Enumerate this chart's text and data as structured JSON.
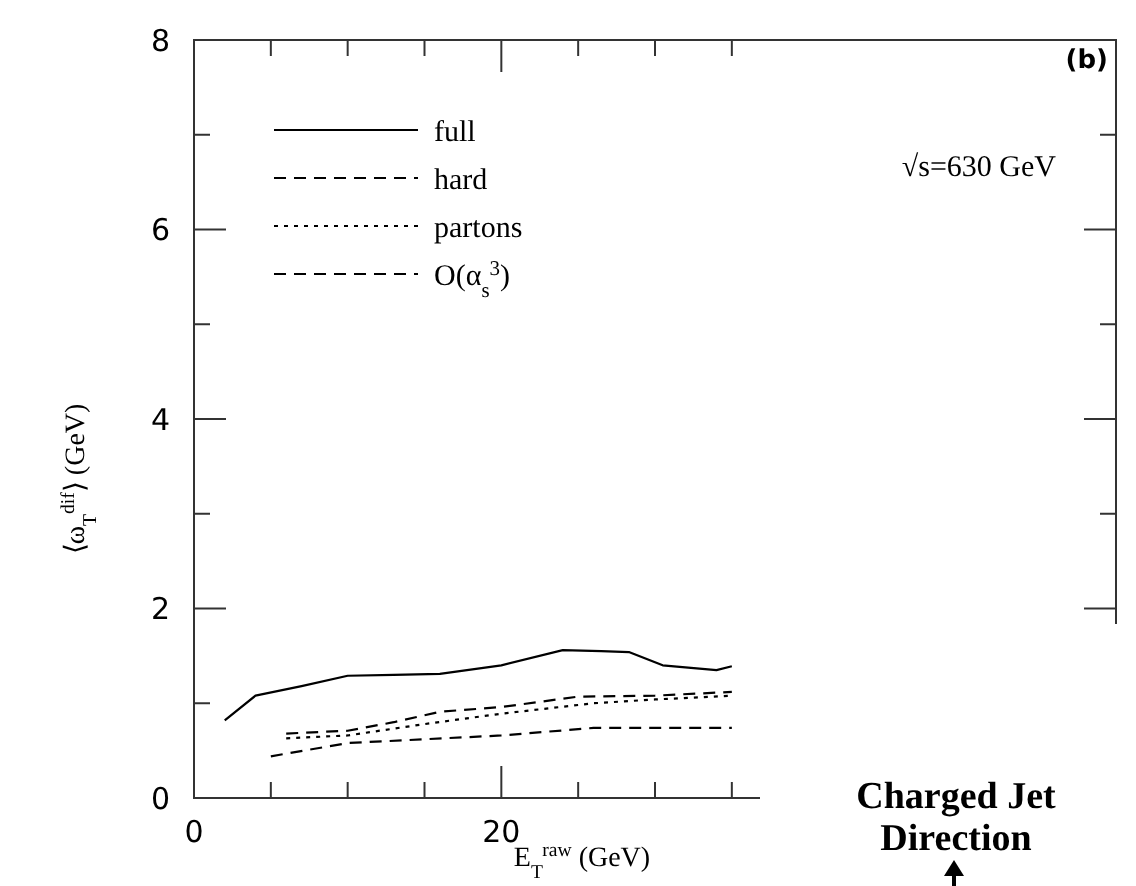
{
  "chart_data": {
    "type": "line",
    "xlabel": "E$_{T}$$^{raw}$ (GeV)",
    "ylabel": "⟨ω$_{T}$$^{dif}$⟩ (GeV)",
    "xlim": [
      0,
      60
    ],
    "xticks": [
      0,
      {
        "value": 5,
        "label": null
      },
      {
        "value": 10,
        "label": null
      },
      {
        "value": 15,
        "label": null
      },
      20,
      {
        "value": 25,
        "label": null
      },
      {
        "value": 30,
        "label": null
      },
      {
        "value": 35,
        "label": null
      }
    ],
    "ylim": [
      0,
      8
    ],
    "yticks": [
      0,
      {
        "value": 1,
        "label": null
      },
      2,
      {
        "value": 3,
        "label": null
      },
      4,
      {
        "value": 5,
        "label": null
      },
      6,
      {
        "value": 7,
        "label": null
      },
      8
    ],
    "grid": false,
    "legend": "top left",
    "annotations": [
      "(b)",
      "√s=630 GeV",
      "Charged Jet Direction"
    ],
    "series": [
      {
        "name": "full",
        "color": "#000000",
        "line_style": "solid",
        "x": [
          2,
          4,
          7,
          10,
          13,
          16,
          20,
          24,
          26.5,
          28.3,
          30.5,
          34,
          35
        ],
        "values": [
          0.82,
          1.08,
          1.18,
          1.29,
          1.3,
          1.31,
          1.4,
          1.56,
          1.55,
          1.54,
          1.4,
          1.35,
          1.39
        ]
      },
      {
        "name": "hard",
        "color": "#000000",
        "line_style": "dashed",
        "x": [
          6,
          10,
          13,
          16,
          20,
          25,
          30,
          35
        ],
        "values": [
          0.68,
          0.71,
          0.8,
          0.91,
          0.96,
          1.07,
          1.08,
          1.12
        ]
      },
      {
        "name": "partons",
        "color": "#000000",
        "line_style": "dotted",
        "x": [
          6,
          10,
          15,
          20,
          26,
          30,
          35
        ],
        "values": [
          0.63,
          0.66,
          0.78,
          0.89,
          1.0,
          1.04,
          1.08
        ]
      },
      {
        "name": "O(α$_{s}$$^{3}$)",
        "color": "#000000",
        "line_style": "dashed",
        "x": [
          5,
          10,
          15,
          20,
          26,
          30,
          35
        ],
        "values": [
          0.44,
          0.58,
          0.62,
          0.66,
          0.74,
          0.74,
          0.74
        ]
      }
    ]
  }
}
